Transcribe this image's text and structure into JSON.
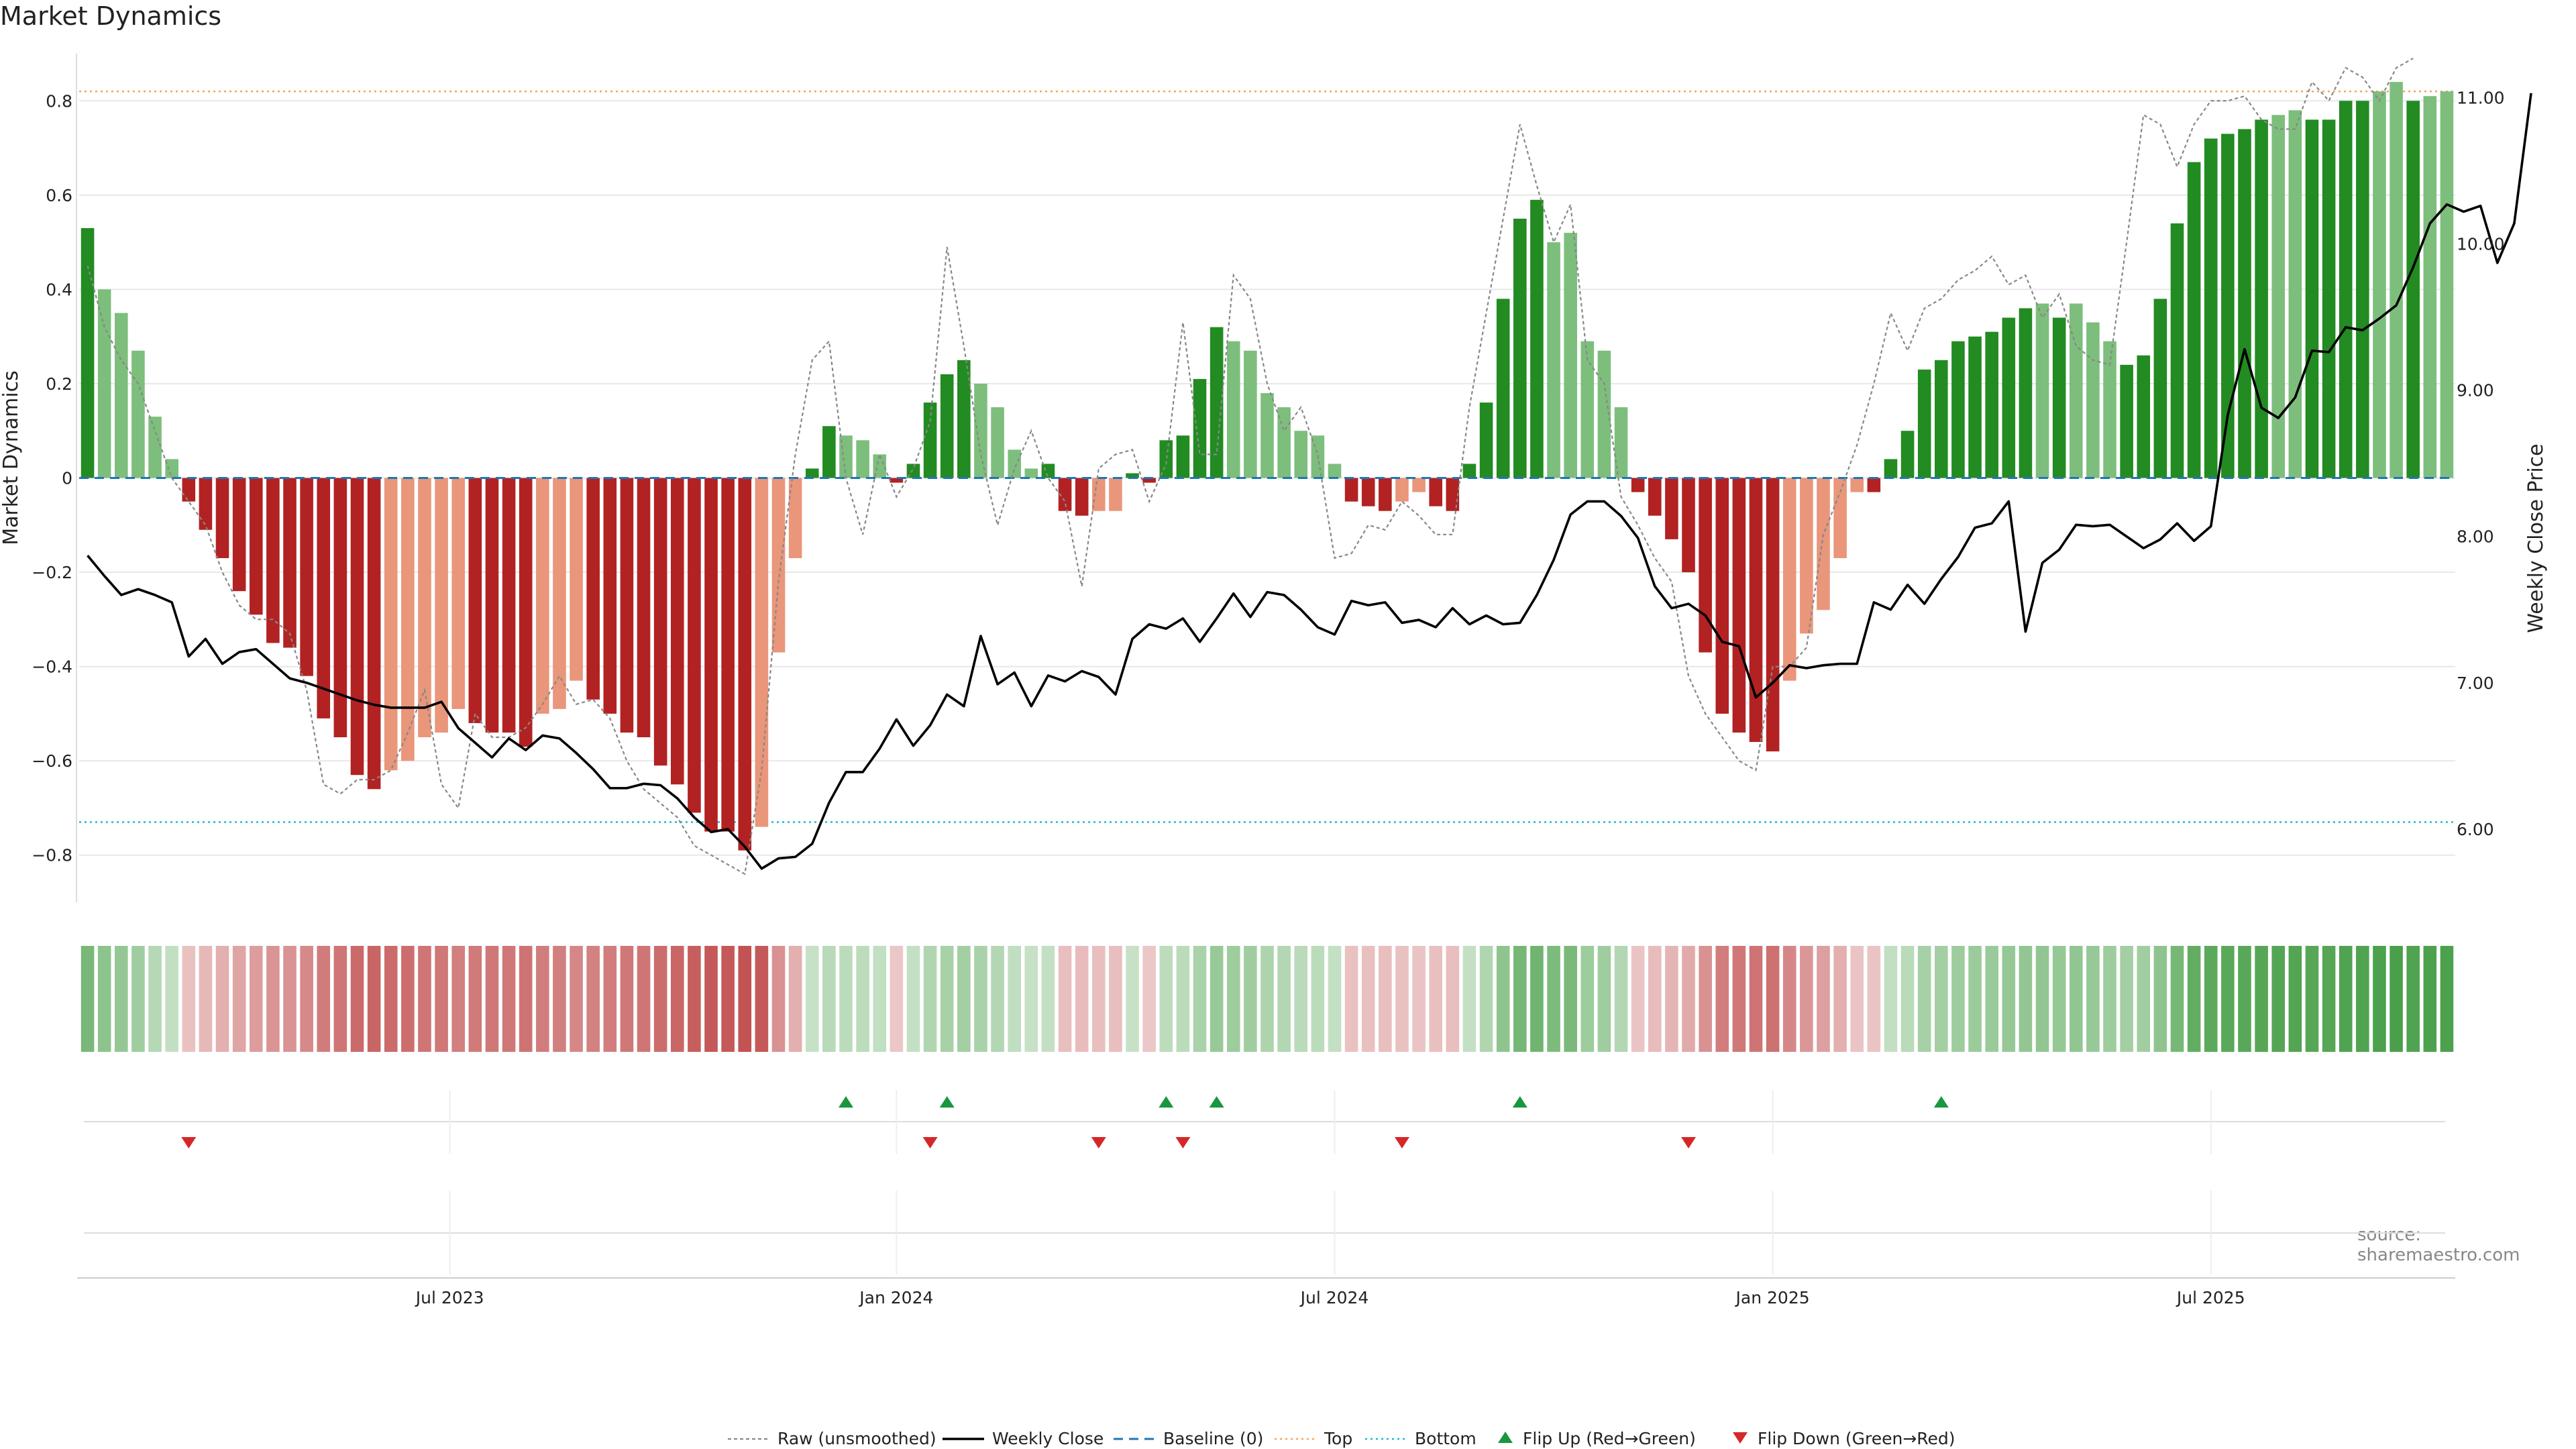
{
  "chart_title": "Market Dynamics",
  "source": "source: sharemaestro.com",
  "colors": {
    "strong_green": "#228B22",
    "light_green": "#7DBE7D",
    "strong_red": "#B22222",
    "light_red": "#E9967A",
    "close_line": "#000000",
    "raw_line": "#888888",
    "baseline": "#1f77b4",
    "top_line": "#F4A460",
    "bottom_line": "#17becf",
    "flip_up": "#1a9641",
    "flip_down": "#d62728"
  },
  "chart_data": {
    "type": "bar+line",
    "title": "Market Dynamics",
    "ylabel_left": "Market Dynamics",
    "ylabel_right": "Weekly Close Price",
    "ylim_left": [
      -0.9,
      0.9
    ],
    "ylim_right": [
      5.5,
      11.3
    ],
    "left_ticks": [
      0.8,
      0.6,
      0.4,
      0.2,
      0,
      -0.2,
      -0.4,
      -0.6,
      -0.8
    ],
    "left_tick_labels": [
      "0.8",
      "0.6",
      "0.4",
      "0.2",
      "0",
      "−0.2",
      "−0.4",
      "−0.6",
      "−0.8"
    ],
    "right_ticks": [
      11,
      10,
      9,
      8,
      7,
      6
    ],
    "right_tick_labels": [
      "11.00",
      "10.00",
      "9.00",
      "8.00",
      "7.00",
      "6.00"
    ],
    "x_date_ticks": [
      "Jul 2023",
      "Jan 2024",
      "Jul 2024",
      "Jan 2025",
      "Jul 2025"
    ],
    "x_tick_week_index": [
      22,
      48.5,
      74.5,
      100.5,
      126.5
    ],
    "top_level": 0.82,
    "bottom_level": -0.73,
    "bars": [
      0.53,
      0.4,
      0.35,
      0.27,
      0.13,
      0.04,
      -0.05,
      -0.11,
      -0.17,
      -0.24,
      -0.29,
      -0.35,
      -0.36,
      -0.42,
      -0.51,
      -0.55,
      -0.63,
      -0.66,
      -0.62,
      -0.6,
      -0.55,
      -0.54,
      -0.49,
      -0.52,
      -0.54,
      -0.54,
      -0.57,
      -0.5,
      -0.49,
      -0.43,
      -0.47,
      -0.5,
      -0.54,
      -0.55,
      -0.61,
      -0.65,
      -0.71,
      -0.75,
      -0.75,
      -0.79,
      -0.74,
      -0.37,
      -0.17,
      0.02,
      0.11,
      0.09,
      0.08,
      0.05,
      -0.01,
      0.03,
      0.16,
      0.22,
      0.25,
      0.2,
      0.15,
      0.06,
      0.02,
      0.03,
      -0.07,
      -0.08,
      -0.07,
      -0.07,
      0.01,
      -0.01,
      0.08,
      0.09,
      0.21,
      0.32,
      0.29,
      0.27,
      0.18,
      0.15,
      0.1,
      0.09,
      0.03,
      -0.05,
      -0.06,
      -0.07,
      -0.05,
      -0.03,
      -0.06,
      -0.07,
      0.03,
      0.16,
      0.38,
      0.55,
      0.59,
      0.5,
      0.52,
      0.29,
      0.27,
      0.15,
      -0.03,
      -0.08,
      -0.13,
      -0.2,
      -0.37,
      -0.5,
      -0.54,
      -0.56,
      -0.58,
      -0.43,
      -0.33,
      -0.28,
      -0.17,
      -0.03,
      -0.03,
      0.04,
      0.1,
      0.23,
      0.25,
      0.29,
      0.3,
      0.31,
      0.34,
      0.36,
      0.37,
      0.34,
      0.37,
      0.33,
      0.29,
      0.24,
      0.26,
      0.38,
      0.54,
      0.67,
      0.72,
      0.73,
      0.74,
      0.76,
      0.77,
      0.78,
      0.76,
      0.76,
      0.8,
      0.8,
      0.82,
      0.84,
      0.8,
      0.81,
      0.82
    ],
    "bar_strength": [
      "strong",
      "light",
      "light",
      "light",
      "light",
      "light",
      "strong",
      "strong",
      "strong",
      "strong",
      "strong",
      "strong",
      "strong",
      "strong",
      "strong",
      "strong",
      "strong",
      "strong",
      "light",
      "light",
      "light",
      "light",
      "light",
      "strong",
      "strong",
      "strong",
      "strong",
      "light",
      "light",
      "light",
      "strong",
      "strong",
      "strong",
      "strong",
      "strong",
      "strong",
      "strong",
      "strong",
      "strong",
      "strong",
      "light",
      "light",
      "light",
      "strong",
      "strong",
      "light",
      "light",
      "light",
      "strong",
      "strong",
      "strong",
      "strong",
      "strong",
      "light",
      "light",
      "light",
      "light",
      "strong",
      "strong",
      "strong",
      "light",
      "light",
      "strong",
      "strong",
      "strong",
      "strong",
      "strong",
      "strong",
      "light",
      "light",
      "light",
      "light",
      "light",
      "light",
      "light",
      "strong",
      "strong",
      "strong",
      "light",
      "light",
      "strong",
      "strong",
      "strong",
      "strong",
      "strong",
      "strong",
      "strong",
      "light",
      "light",
      "light",
      "light",
      "light",
      "strong",
      "strong",
      "strong",
      "strong",
      "strong",
      "strong",
      "strong",
      "strong",
      "strong",
      "light",
      "light",
      "light",
      "light",
      "light",
      "strong",
      "strong",
      "strong",
      "strong",
      "strong",
      "strong",
      "strong",
      "strong",
      "strong",
      "strong",
      "light",
      "strong",
      "light",
      "light",
      "light",
      "strong",
      "strong",
      "strong",
      "strong",
      "strong",
      "strong",
      "strong",
      "strong",
      "strong",
      "light",
      "light",
      "strong",
      "strong",
      "strong",
      "strong",
      "light",
      "light",
      "strong"
    ],
    "weekly_close": [
      7.87,
      7.73,
      7.6,
      7.64,
      7.6,
      7.55,
      7.18,
      7.3,
      7.13,
      7.21,
      7.23,
      7.13,
      7.03,
      7.0,
      6.96,
      6.92,
      6.88,
      6.85,
      6.83,
      6.83,
      6.83,
      6.87,
      6.69,
      6.59,
      6.49,
      6.62,
      6.54,
      6.64,
      6.62,
      6.52,
      6.41,
      6.28,
      6.28,
      6.31,
      6.3,
      6.21,
      6.08,
      5.98,
      6.0,
      5.88,
      5.73,
      5.8,
      5.81,
      5.9,
      6.18,
      6.39,
      6.39,
      6.55,
      6.75,
      6.57,
      6.71,
      6.92,
      6.84,
      7.32,
      6.99,
      7.07,
      6.84,
      7.05,
      7.01,
      7.08,
      7.04,
      6.92,
      7.3,
      7.4,
      7.37,
      7.44,
      7.28,
      7.44,
      7.61,
      7.45,
      7.62,
      7.6,
      7.5,
      7.38,
      7.33,
      7.56,
      7.53,
      7.55,
      7.41,
      7.43,
      7.38,
      7.51,
      7.4,
      7.46,
      7.4,
      7.41,
      7.6,
      7.84,
      8.15,
      8.24,
      8.24,
      8.14,
      7.99,
      7.66,
      7.51,
      7.54,
      7.46,
      7.28,
      7.25,
      6.9,
      7.0,
      7.12,
      7.1,
      7.12,
      7.13,
      7.13,
      7.55,
      7.5,
      7.67,
      7.54,
      7.71,
      7.86,
      8.06,
      8.09,
      8.24,
      7.35,
      7.82,
      7.91,
      8.08,
      8.07,
      8.08,
      8.0,
      7.92,
      7.98,
      8.09,
      7.97,
      8.07,
      8.83,
      9.28,
      8.88,
      8.81,
      8.95,
      9.27,
      9.26,
      9.43,
      9.41,
      9.49,
      9.58,
      9.84,
      10.14,
      10.27,
      10.22,
      10.26,
      9.87,
      10.14,
      11.03
    ],
    "raw": [
      0.45,
      0.32,
      0.25,
      0.2,
      0.1,
      0.0,
      -0.05,
      -0.1,
      -0.2,
      -0.27,
      -0.3,
      -0.3,
      -0.33,
      -0.45,
      -0.65,
      -0.67,
      -0.64,
      -0.64,
      -0.62,
      -0.54,
      -0.45,
      -0.65,
      -0.7,
      -0.5,
      -0.55,
      -0.55,
      -0.53,
      -0.48,
      -0.42,
      -0.48,
      -0.47,
      -0.51,
      -0.6,
      -0.66,
      -0.69,
      -0.72,
      -0.78,
      -0.8,
      -0.82,
      -0.84,
      -0.62,
      -0.22,
      0.05,
      0.25,
      0.29,
      0.0,
      -0.12,
      0.05,
      -0.04,
      0.02,
      0.12,
      0.49,
      0.28,
      0.05,
      -0.1,
      0.02,
      0.1,
      0.0,
      -0.05,
      -0.23,
      0.02,
      0.05,
      0.06,
      -0.05,
      0.03,
      0.33,
      0.05,
      0.05,
      0.43,
      0.38,
      0.2,
      0.1,
      0.15,
      0.05,
      -0.17,
      -0.16,
      -0.1,
      -0.11,
      -0.05,
      -0.08,
      -0.12,
      -0.12,
      0.15,
      0.35,
      0.55,
      0.75,
      0.62,
      0.5,
      0.58,
      0.25,
      0.2,
      -0.04,
      -0.1,
      -0.17,
      -0.22,
      -0.42,
      -0.5,
      -0.55,
      -0.6,
      -0.62,
      -0.4,
      -0.4,
      -0.36,
      -0.12,
      -0.03,
      0.07,
      0.2,
      0.35,
      0.27,
      0.36,
      0.38,
      0.42,
      0.44,
      0.47,
      0.41,
      0.43,
      0.34,
      0.39,
      0.28,
      0.25,
      0.24,
      0.5,
      0.77,
      0.75,
      0.66,
      0.75,
      0.8,
      0.8,
      0.81,
      0.76,
      0.74,
      0.74,
      0.84,
      0.8,
      0.87,
      0.85,
      0.8,
      0.87,
      0.89
    ],
    "flip_up_week_index": [
      45.5,
      51.5,
      64.5,
      67.5,
      85.5,
      110.5
    ],
    "flip_down_week_index": [
      6.5,
      50.5,
      60.5,
      65.5,
      78.5,
      95.5
    ],
    "legend": [
      "Raw (unsmoothed)",
      "Weekly Close",
      "Baseline (0)",
      "Top",
      "Bottom",
      "Flip Up (Red→Green)",
      "Flip Down (Green→Red)"
    ]
  }
}
